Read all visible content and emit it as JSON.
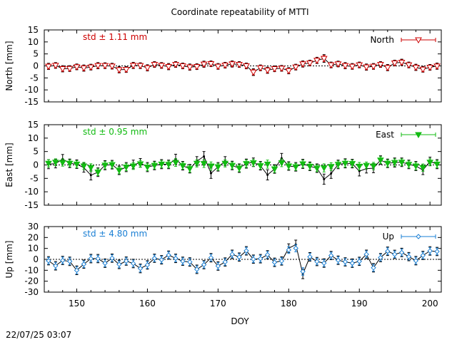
{
  "title": "Coordinate repeatability of MTTI",
  "timestamp": "22/07/25 03:07",
  "chart_data": {
    "type": "line",
    "title": "Coordinate repeatability of MTTI",
    "xlabel": "DOY",
    "xlim": [
      145.4,
      201.6
    ],
    "x_ticks": [
      150,
      160,
      170,
      180,
      190,
      200
    ],
    "x": [
      146,
      147,
      148,
      149,
      150,
      151,
      152,
      153,
      154,
      155,
      156,
      157,
      158,
      159,
      160,
      161,
      162,
      163,
      164,
      165,
      166,
      167,
      168,
      169,
      170,
      171,
      172,
      173,
      174,
      175,
      176,
      177,
      178,
      179,
      180,
      181,
      182,
      183,
      184,
      185,
      186,
      187,
      188,
      189,
      190,
      191,
      192,
      193,
      194,
      195,
      196,
      197,
      198,
      199,
      200,
      201
    ],
    "panels": [
      {
        "name": "North",
        "ylabel": "North [mm]",
        "ylim": [
          -15,
          15
        ],
        "y_ticks": [
          15,
          10,
          5,
          0,
          -5,
          -10,
          -15
        ],
        "std_label": "std ± 1.11 mm",
        "color": "#cc0000",
        "legend": "North",
        "marker": "triangle-down-open",
        "raw": [
          -0.2,
          0.2,
          -1.2,
          -1.1,
          -0.4,
          -0.9,
          -0.5,
          0.1,
          0.1,
          -0.1,
          -1.6,
          -1.5,
          0.2,
          0.1,
          -0.8,
          0.6,
          0.2,
          -0.3,
          0.6,
          0.0,
          -0.5,
          -0.3,
          0.7,
          0.9,
          -0.2,
          0.3,
          0.8,
          0.6,
          0.0,
          -2.6,
          -0.8,
          -1.8,
          -1.2,
          -1.0,
          -2.0,
          -0.5,
          0.8,
          1.2,
          2.3,
          3.1,
          0.4,
          0.8,
          0.1,
          -0.2,
          0.4,
          -0.5,
          -0.2,
          0.6,
          -0.7,
          1.2,
          1.5,
          0.4,
          -0.6,
          -1.4,
          -0.6,
          -0.1
        ],
        "filtered": [
          -0.2,
          0.2,
          -1.2,
          -1.1,
          -0.4,
          -0.9,
          -0.5,
          0.1,
          0.1,
          -0.1,
          -1.6,
          -1.5,
          0.2,
          0.1,
          -0.8,
          0.6,
          0.2,
          -0.3,
          0.6,
          0.0,
          -0.5,
          -0.3,
          0.7,
          0.9,
          -0.2,
          0.3,
          0.8,
          0.6,
          0.0,
          -2.6,
          -0.8,
          -1.8,
          -1.2,
          -1.0,
          -2.0,
          -0.5,
          0.8,
          1.2,
          2.3,
          3.1,
          0.4,
          0.8,
          0.1,
          -0.2,
          0.4,
          -0.5,
          -0.2,
          0.6,
          -0.7,
          1.2,
          1.5,
          0.4,
          -0.6,
          -1.4,
          -0.6,
          -0.1
        ],
        "errors": [
          1.3,
          1.2,
          1.3,
          1.2,
          1.2,
          1.3,
          1.2,
          1.3,
          1.2,
          1.2,
          1.3,
          1.2,
          1.3,
          1.2,
          1.3,
          1.2,
          1.2,
          1.3,
          1.2,
          1.2,
          1.3,
          1.2,
          1.3,
          1.2,
          1.2,
          1.2,
          1.3,
          1.2,
          1.2,
          1.4,
          1.2,
          1.3,
          1.2,
          1.2,
          1.3,
          1.2,
          1.3,
          1.2,
          1.3,
          1.6,
          1.2,
          1.2,
          1.3,
          1.2,
          1.2,
          1.3,
          1.2,
          1.2,
          1.3,
          1.2,
          1.3,
          1.2,
          1.3,
          1.2,
          1.2,
          1.3
        ]
      },
      {
        "name": "East",
        "ylabel": "East [mm]",
        "ylim": [
          -15,
          15
        ],
        "y_ticks": [
          15,
          10,
          5,
          0,
          -5,
          -10,
          -15
        ],
        "std_label": "std ± 0.95 mm",
        "color": "#11bb11",
        "legend": "East",
        "marker": "triangle-down-filled",
        "raw": [
          0.3,
          0.5,
          2.2,
          0.6,
          0.3,
          -1.0,
          -3.8,
          -2.7,
          -0.1,
          0.1,
          -2.0,
          -0.8,
          0.2,
          0.8,
          -0.8,
          -0.2,
          0.3,
          0.2,
          2.2,
          -0.3,
          -1.4,
          1.4,
          3.2,
          -3.1,
          -0.7,
          1.4,
          -0.2,
          -1.2,
          0.5,
          1.0,
          -0.3,
          -3.7,
          -1.5,
          2.5,
          -0.4,
          -0.7,
          0.4,
          -0.5,
          -1.2,
          -5.3,
          -3.2,
          0.2,
          0.6,
          0.5,
          -2.3,
          -1.4,
          -1.2,
          1.8,
          0.6,
          0.9,
          1.0,
          0.2,
          -0.4,
          -1.9,
          1.3,
          0.3
        ],
        "filtered": [
          0.6,
          1.0,
          0.9,
          0.6,
          0.3,
          -0.4,
          -1.0,
          -2.7,
          -0.1,
          0.1,
          -2.0,
          -0.8,
          -0.4,
          0.4,
          -0.8,
          -0.2,
          0.3,
          0.2,
          0.9,
          -0.3,
          -1.4,
          0.6,
          0.5,
          -0.4,
          -0.7,
          0.6,
          -0.2,
          -1.2,
          0.5,
          0.8,
          -0.3,
          0.3,
          -1.5,
          0.8,
          -0.4,
          -0.7,
          0.4,
          -0.5,
          -1.2,
          -1.1,
          -0.6,
          0.2,
          0.6,
          0.5,
          -0.5,
          -0.2,
          -0.4,
          1.8,
          0.6,
          0.9,
          1.0,
          0.2,
          -0.4,
          -1.0,
          1.0,
          0.3
        ],
        "errors": [
          1.7,
          1.6,
          1.7,
          1.6,
          1.6,
          1.7,
          1.8,
          1.6,
          1.7,
          1.6,
          1.6,
          1.7,
          1.6,
          1.6,
          1.7,
          1.6,
          1.7,
          1.6,
          1.8,
          1.6,
          1.6,
          1.7,
          1.8,
          1.9,
          1.6,
          1.7,
          1.6,
          1.6,
          1.7,
          1.6,
          1.6,
          1.9,
          1.6,
          1.8,
          1.6,
          1.6,
          1.7,
          1.6,
          1.6,
          1.9,
          1.8,
          1.6,
          1.7,
          1.6,
          1.8,
          1.6,
          1.7,
          1.6,
          1.6,
          1.7,
          1.6,
          1.6,
          1.7,
          1.7,
          1.6,
          1.7
        ]
      },
      {
        "name": "Up",
        "ylabel": "Up [mm]",
        "ylim": [
          -30,
          30
        ],
        "y_ticks": [
          30,
          20,
          10,
          0,
          -10,
          -20,
          -30
        ],
        "std_label": "std ± 4.80 mm",
        "color": "#1a7fd4",
        "legend": "Up",
        "marker": "diamond-open",
        "raw": [
          -1.3,
          -5.9,
          -1.0,
          -1.8,
          -10.0,
          -4.4,
          0.7,
          0.7,
          -3.5,
          1.1,
          -4.6,
          -1.6,
          -3.8,
          -8.3,
          -5.1,
          1.0,
          -0.4,
          3.9,
          0.9,
          -1.7,
          -2.4,
          -9.1,
          -4.9,
          1.5,
          -6.1,
          -2.4,
          4.6,
          2.1,
          7.8,
          0.2,
          0.6,
          4.2,
          -2.7,
          -1.5,
          10.2,
          13.5,
          -13.4,
          2.3,
          -2.0,
          -3.4,
          3.5,
          -0.8,
          -2.3,
          -3.5,
          -1.8,
          4.6,
          -7.7,
          1.6,
          7.4,
          4.6,
          6.3,
          2.5,
          -1.2,
          3.6,
          7.7,
          7.2
        ],
        "filtered": [
          -1.3,
          -5.9,
          -1.0,
          -1.8,
          -10.0,
          -4.4,
          0.7,
          0.7,
          -3.5,
          1.1,
          -4.6,
          -1.6,
          -3.8,
          -8.3,
          -5.1,
          1.0,
          -0.4,
          3.9,
          0.9,
          -1.7,
          -2.4,
          -9.1,
          -4.9,
          1.5,
          -6.1,
          -2.4,
          4.6,
          2.1,
          7.8,
          0.2,
          0.6,
          4.2,
          -2.7,
          -1.5,
          8.6,
          10.2,
          -11.1,
          2.3,
          -2.0,
          -3.4,
          3.5,
          -0.8,
          -2.3,
          -3.5,
          -1.8,
          4.6,
          -7.7,
          1.6,
          7.4,
          4.6,
          6.3,
          2.5,
          -1.2,
          3.6,
          7.7,
          7.2
        ],
        "errors": [
          3.8,
          3.9,
          3.8,
          3.9,
          4.0,
          3.8,
          3.9,
          3.8,
          3.9,
          3.8,
          3.9,
          3.8,
          3.9,
          4.0,
          3.9,
          3.8,
          3.9,
          3.8,
          3.9,
          3.8,
          3.9,
          3.9,
          3.8,
          3.9,
          3.9,
          3.8,
          3.9,
          3.8,
          3.9,
          3.8,
          3.9,
          3.8,
          3.9,
          3.8,
          4.0,
          4.1,
          4.3,
          3.9,
          3.8,
          3.9,
          3.8,
          3.9,
          3.8,
          3.9,
          3.8,
          3.9,
          3.9,
          3.8,
          3.9,
          3.8,
          3.9,
          3.8,
          3.9,
          3.8,
          3.9,
          3.8
        ]
      }
    ]
  }
}
